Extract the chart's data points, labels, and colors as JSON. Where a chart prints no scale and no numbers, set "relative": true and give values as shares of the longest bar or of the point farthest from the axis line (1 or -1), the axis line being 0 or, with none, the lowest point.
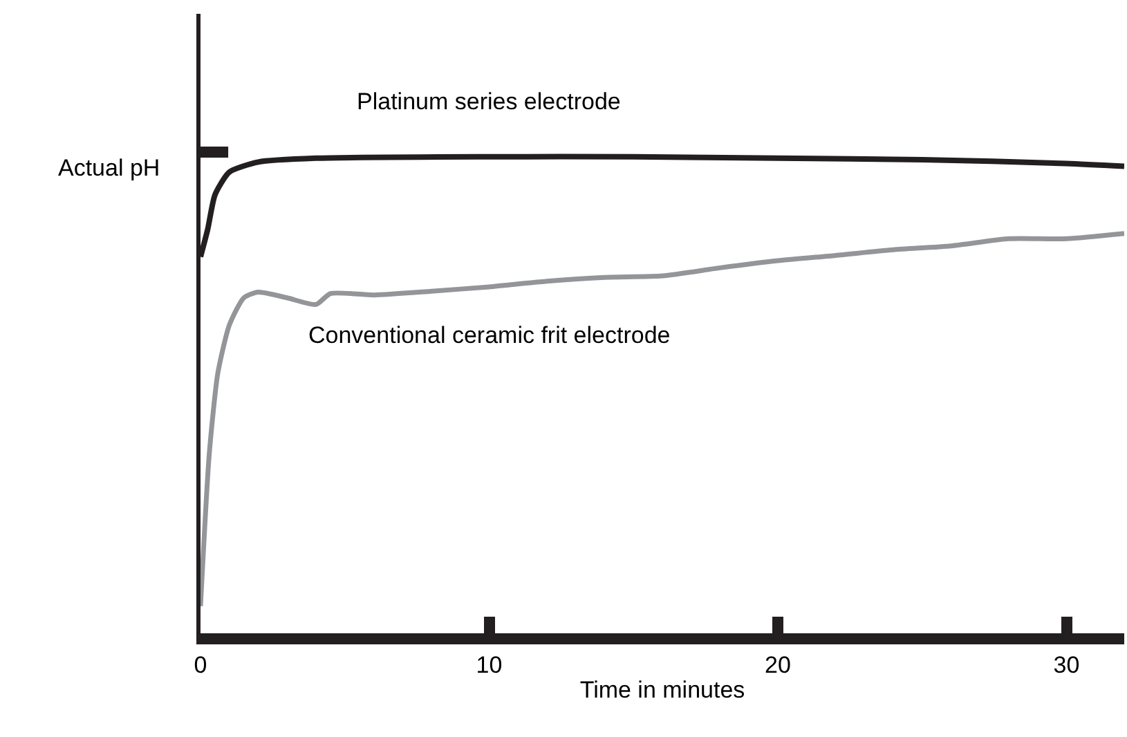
{
  "chart_data": {
    "type": "line",
    "relative": true,
    "xlabel": "Time in minutes",
    "xlim": [
      0,
      32
    ],
    "xticks": [
      0,
      10,
      20,
      30
    ],
    "legend": false,
    "marker": "none",
    "line_style": "solid",
    "annotations": [
      "Actual pH"
    ],
    "series": [
      {
        "name": "Platinum series electrode",
        "color": "#231f20",
        "x": [
          0,
          0.25,
          0.5,
          1,
          2,
          4,
          10,
          15,
          20,
          25,
          30,
          32
        ],
        "values": [
          0.79,
          0.848,
          0.92,
          0.968,
          0.989,
          0.997,
          1,
          1,
          0.997,
          0.994,
          0.986,
          0.98
        ]
      },
      {
        "name": "Conventional ceramic frit electrode",
        "color": "#939598",
        "x": [
          0,
          0.3,
          0.6,
          1,
          1.5,
          2,
          3,
          4,
          4.5,
          6,
          8,
          10,
          12,
          14,
          16,
          18,
          20,
          22,
          24,
          26,
          28,
          30,
          32
        ],
        "values": [
          0.057,
          0.374,
          0.546,
          0.647,
          0.704,
          0.716,
          0.704,
          0.69,
          0.713,
          0.71,
          0.718,
          0.727,
          0.739,
          0.747,
          0.75,
          0.767,
          0.782,
          0.793,
          0.805,
          0.813,
          0.828,
          0.828,
          0.839
        ]
      }
    ]
  }
}
